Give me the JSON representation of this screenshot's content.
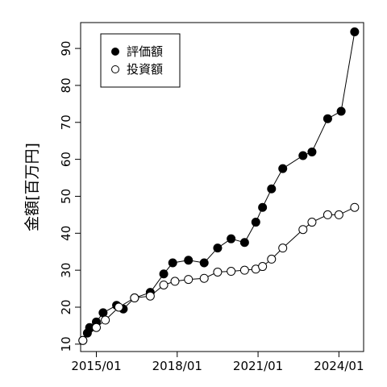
{
  "chart_data": {
    "type": "line",
    "title": "",
    "xlabel": "",
    "ylabel": "金額[百万円]",
    "x_ticks": [
      "2015/01",
      "2018/01",
      "2021/01",
      "2024/01"
    ],
    "x_tick_values": [
      "2015-01",
      "2018-01",
      "2021-01",
      "2024-01"
    ],
    "xlim": [
      "2014-06",
      "2024-12"
    ],
    "y_ticks": [
      10,
      20,
      30,
      40,
      50,
      60,
      70,
      80,
      90
    ],
    "ylim": [
      8,
      97
    ],
    "grid": false,
    "legend_position": "top-left",
    "series": [
      {
        "name": "評価額",
        "marker": "filled-circle",
        "color": "#000000",
        "points": [
          {
            "x": "2014-07",
            "y": 11.0
          },
          {
            "x": "2014-09",
            "y": 13.0
          },
          {
            "x": "2014-10",
            "y": 14.5
          },
          {
            "x": "2015-01",
            "y": 16.0
          },
          {
            "x": "2015-04",
            "y": 18.5
          },
          {
            "x": "2015-10",
            "y": 20.5
          },
          {
            "x": "2016-01",
            "y": 19.5
          },
          {
            "x": "2016-06",
            "y": 22.5
          },
          {
            "x": "2017-01",
            "y": 24.0
          },
          {
            "x": "2017-07",
            "y": 29.0
          },
          {
            "x": "2017-11",
            "y": 32.0
          },
          {
            "x": "2018-06",
            "y": 32.7
          },
          {
            "x": "2019-01",
            "y": 32.0
          },
          {
            "x": "2019-07",
            "y": 36.0
          },
          {
            "x": "2020-01",
            "y": 38.5
          },
          {
            "x": "2020-07",
            "y": 37.5
          },
          {
            "x": "2020-12",
            "y": 43.0
          },
          {
            "x": "2021-03",
            "y": 47.0
          },
          {
            "x": "2021-07",
            "y": 52.0
          },
          {
            "x": "2021-12",
            "y": 57.5
          },
          {
            "x": "2022-09",
            "y": 61.0
          },
          {
            "x": "2023-01",
            "y": 62.0
          },
          {
            "x": "2023-08",
            "y": 71.0
          },
          {
            "x": "2024-02",
            "y": 73.0
          },
          {
            "x": "2024-08",
            "y": 94.5
          }
        ]
      },
      {
        "name": "投資額",
        "marker": "open-circle",
        "color": "#000000",
        "points": [
          {
            "x": "2014-07",
            "y": 11.0
          },
          {
            "x": "2015-01",
            "y": 14.5
          },
          {
            "x": "2015-05",
            "y": 16.5
          },
          {
            "x": "2015-11",
            "y": 20.0
          },
          {
            "x": "2016-06",
            "y": 22.5
          },
          {
            "x": "2017-01",
            "y": 23.0
          },
          {
            "x": "2017-07",
            "y": 26.0
          },
          {
            "x": "2017-12",
            "y": 27.0
          },
          {
            "x": "2018-06",
            "y": 27.5
          },
          {
            "x": "2019-01",
            "y": 27.8
          },
          {
            "x": "2019-07",
            "y": 29.5
          },
          {
            "x": "2020-01",
            "y": 29.7
          },
          {
            "x": "2020-07",
            "y": 30.0
          },
          {
            "x": "2020-12",
            "y": 30.3
          },
          {
            "x": "2021-03",
            "y": 31.0
          },
          {
            "x": "2021-07",
            "y": 33.0
          },
          {
            "x": "2021-12",
            "y": 36.0
          },
          {
            "x": "2022-09",
            "y": 41.0
          },
          {
            "x": "2023-01",
            "y": 43.0
          },
          {
            "x": "2023-08",
            "y": 45.0
          },
          {
            "x": "2024-01",
            "y": 45.0
          },
          {
            "x": "2024-08",
            "y": 47.0
          }
        ]
      }
    ]
  }
}
